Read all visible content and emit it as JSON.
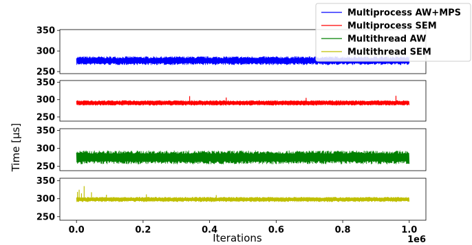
{
  "chart_data": {
    "type": "line",
    "ylabel": "Time [μs]",
    "xlabel": "Iterations",
    "x_offset_label": "1e6",
    "x_range": [
      0.0,
      1.0
    ],
    "xlim": [
      -0.05,
      1.05
    ],
    "x_ticks": [
      "0.0",
      "0.2",
      "0.4",
      "0.6",
      "0.8",
      "1.0"
    ],
    "x_tick_values": [
      0.0,
      0.2,
      0.4,
      0.6,
      0.8,
      1.0
    ],
    "legend_position": "top-right",
    "series": [
      {
        "name": "Multiprocess AW+MPS",
        "color": "#0000ff",
        "ylim": [
          245,
          352
        ],
        "y_ticks": [
          "250",
          "300",
          "350"
        ],
        "y_tick_values": [
          250,
          300,
          350
        ],
        "band": [
          266,
          287
        ],
        "spikes": []
      },
      {
        "name": "Multiprocess SEM",
        "color": "#ff0000",
        "ylim": [
          238,
          355
        ],
        "y_ticks": [
          "250",
          "300",
          "350"
        ],
        "y_tick_values": [
          250,
          300,
          350
        ],
        "band": [
          283,
          298
        ],
        "spikes": [
          [
            0.34,
            310
          ],
          [
            0.45,
            306
          ],
          [
            0.69,
            305
          ],
          [
            0.96,
            311
          ]
        ]
      },
      {
        "name": "Multithread AW",
        "color": "#008000",
        "ylim": [
          238,
          355
        ],
        "y_ticks": [
          "250",
          "300",
          "350"
        ],
        "y_tick_values": [
          250,
          300,
          350
        ],
        "band": [
          256,
          294
        ],
        "spikes": []
      },
      {
        "name": "Multithread SEM",
        "color": "#bfbf00",
        "ylim": [
          240,
          357
        ],
        "y_ticks": [
          "250",
          "300",
          "350"
        ],
        "y_tick_values": [
          250,
          300,
          350
        ],
        "band": [
          291,
          305
        ],
        "spikes": [
          [
            0.003,
            319
          ],
          [
            0.008,
            325
          ],
          [
            0.015,
            315
          ],
          [
            0.023,
            335
          ],
          [
            0.045,
            318
          ],
          [
            0.09,
            311
          ],
          [
            0.21,
            312
          ],
          [
            0.42,
            310
          ]
        ]
      }
    ]
  }
}
